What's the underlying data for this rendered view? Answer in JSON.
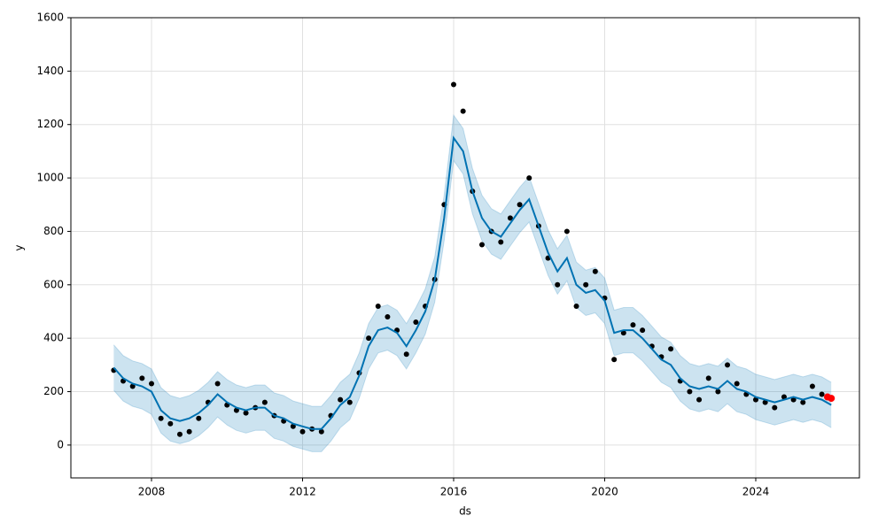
{
  "chart_data": {
    "type": "line",
    "xlabel": "ds",
    "ylabel": "y",
    "xlim": [
      2005.865,
      2026.745
    ],
    "ylim": [
      -123,
      1600
    ],
    "xticks": [
      2008,
      2012,
      2016,
      2020,
      2024
    ],
    "yticks": [
      0,
      200,
      400,
      600,
      800,
      1000,
      1200,
      1400,
      1600
    ],
    "grid": true,
    "x": [
      2007,
      2007.25,
      2007.5,
      2007.75,
      2008,
      2008.25,
      2008.5,
      2008.75,
      2009,
      2009.25,
      2009.5,
      2009.75,
      2010,
      2010.25,
      2010.5,
      2010.75,
      2011,
      2011.25,
      2011.5,
      2011.75,
      2012,
      2012.25,
      2012.5,
      2012.75,
      2013,
      2013.25,
      2013.5,
      2013.75,
      2014,
      2014.25,
      2014.5,
      2014.75,
      2015,
      2015.25,
      2015.5,
      2015.75,
      2016,
      2016.25,
      2016.5,
      2016.75,
      2017,
      2017.25,
      2017.5,
      2017.75,
      2018,
      2018.25,
      2018.5,
      2018.75,
      2019,
      2019.25,
      2019.5,
      2019.75,
      2020,
      2020.25,
      2020.5,
      2020.75,
      2021,
      2021.25,
      2021.5,
      2021.75,
      2022,
      2022.25,
      2022.5,
      2022.75,
      2023,
      2023.25,
      2023.5,
      2023.75,
      2024,
      2024.25,
      2024.5,
      2024.75,
      2025,
      2025.25,
      2025.5,
      2025.75,
      2026
    ],
    "observed": {
      "color": "#000000",
      "values": [
        280,
        240,
        220,
        250,
        230,
        100,
        80,
        40,
        50,
        100,
        160,
        230,
        150,
        130,
        120,
        140,
        160,
        110,
        90,
        70,
        50,
        60,
        50,
        110,
        170,
        160,
        270,
        400,
        520,
        480,
        430,
        340,
        460,
        520,
        620,
        900,
        1350,
        1250,
        950,
        750,
        800,
        760,
        850,
        900,
        1000,
        820,
        700,
        600,
        800,
        520,
        600,
        650,
        550,
        320,
        420,
        450,
        430,
        370,
        330,
        360,
        240,
        200,
        170,
        250,
        200,
        300,
        230,
        190,
        170,
        160,
        140,
        180,
        170,
        160,
        220,
        190,
        null
      ]
    },
    "yhat": {
      "color": "#0072b2",
      "values": [
        290,
        250,
        230,
        220,
        200,
        130,
        100,
        90,
        100,
        120,
        150,
        190,
        160,
        140,
        130,
        140,
        140,
        110,
        100,
        80,
        70,
        60,
        60,
        100,
        150,
        180,
        260,
        370,
        430,
        440,
        420,
        370,
        430,
        500,
        620,
        850,
        1150,
        1100,
        950,
        850,
        800,
        780,
        830,
        880,
        920,
        820,
        720,
        650,
        700,
        600,
        570,
        580,
        540,
        420,
        430,
        430,
        400,
        360,
        320,
        300,
        250,
        220,
        210,
        220,
        210,
        240,
        210,
        200,
        180,
        170,
        160,
        170,
        180,
        170,
        180,
        170,
        150
      ]
    },
    "yhat_lower": {
      "values": [
        205,
        165,
        145,
        135,
        115,
        45,
        15,
        5,
        15,
        35,
        65,
        105,
        75,
        55,
        45,
        55,
        55,
        25,
        15,
        -5,
        -15,
        -25,
        -25,
        15,
        65,
        95,
        175,
        285,
        345,
        355,
        335,
        285,
        345,
        415,
        535,
        765,
        1065,
        1015,
        865,
        765,
        715,
        695,
        745,
        795,
        835,
        735,
        635,
        565,
        615,
        515,
        485,
        495,
        455,
        335,
        345,
        345,
        315,
        275,
        235,
        215,
        165,
        135,
        125,
        135,
        125,
        155,
        125,
        115,
        95,
        85,
        75,
        85,
        95,
        85,
        95,
        85,
        65
      ]
    },
    "yhat_upper": {
      "values": [
        375,
        335,
        315,
        305,
        285,
        215,
        185,
        175,
        185,
        205,
        235,
        275,
        245,
        225,
        215,
        225,
        225,
        195,
        185,
        165,
        155,
        145,
        145,
        185,
        235,
        265,
        345,
        455,
        515,
        525,
        505,
        455,
        515,
        585,
        705,
        935,
        1235,
        1185,
        1035,
        935,
        885,
        865,
        915,
        965,
        1005,
        905,
        805,
        735,
        785,
        685,
        655,
        665,
        625,
        505,
        515,
        515,
        485,
        445,
        405,
        385,
        335,
        305,
        295,
        305,
        295,
        325,
        295,
        285,
        265,
        255,
        245,
        255,
        265,
        255,
        265,
        255,
        235
      ]
    },
    "band_color": "#0072b2",
    "highlight": {
      "color": "#ff0000",
      "x": [
        2025.9,
        2026.0
      ],
      "values": [
        180,
        175
      ]
    }
  }
}
